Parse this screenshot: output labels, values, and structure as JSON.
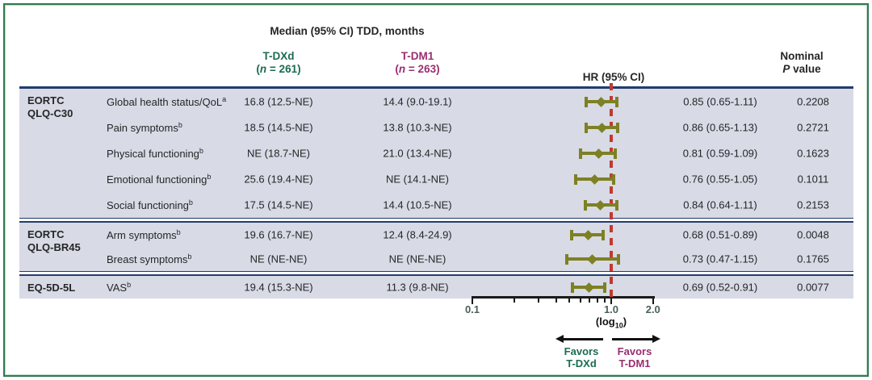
{
  "title": "Median (95% CI) TDD, months",
  "columns": {
    "tdxd": {
      "name": "T-DXd",
      "n_prefix": "(",
      "n_var": "n",
      "n_rest": " = 261)"
    },
    "tdm1": {
      "name": "T-DM1",
      "n_prefix": "(",
      "n_var": "n",
      "n_rest": " = 263)"
    },
    "hr_header": "HR (95% CI)",
    "p_header_line1": "Nominal",
    "p_header_italic": "P",
    "p_header_rest": " value"
  },
  "axis": {
    "scale": "log10",
    "min": 0.1,
    "max": 2.0,
    "ref_line": 1.0,
    "tick_labels": [
      "0.1",
      "1.0",
      "2.0"
    ],
    "minor_ticks": [
      0.1,
      0.2,
      0.3,
      0.4,
      0.5,
      0.6,
      0.7,
      0.8,
      0.9,
      1.0,
      2.0
    ],
    "log_note_pre": "(log",
    "log_note_sub": "10",
    "log_note_post": ")"
  },
  "favors": {
    "left": "Favors\nT-DXd",
    "right": "Favors\nT-DM1"
  },
  "colors": {
    "tdxd_green": "#1c6b52",
    "tdm1_magenta": "#9b2d70",
    "marker_olive": "#7d8123",
    "ref_line_red": "#c03a30",
    "row_background": "#d8dae6",
    "rule_navy": "#223c6d",
    "frame_green": "#2f7b50",
    "axis_label_green": "#4a6158"
  },
  "chart_data": {
    "type": "forest",
    "x_scale": "log10",
    "x_ref_line": 1.0,
    "x_range": [
      0.1,
      2.0
    ],
    "groups": [
      {
        "name_lines": "EORTC\nQLQ-C30",
        "rows": [
          {
            "measure": "Global health status/QoL",
            "sup": "a",
            "tdxd": "16.8 (12.5-NE)",
            "tdm1": "14.4 (9.0-19.1)",
            "hr": 0.85,
            "ci_low": 0.65,
            "ci_high": 1.11,
            "hr_text": "0.85 (0.65-1.11)",
            "p_value": "0.2208"
          },
          {
            "measure": "Pain symptoms",
            "sup": "b",
            "tdxd": "18.5 (14.5-NE)",
            "tdm1": "13.8 (10.3-NE)",
            "hr": 0.86,
            "ci_low": 0.65,
            "ci_high": 1.13,
            "hr_text": "0.86 (0.65-1.13)",
            "p_value": "0.2721"
          },
          {
            "measure": "Physical functioning",
            "sup": "b",
            "tdxd": "NE (18.7-NE)",
            "tdm1": "21.0 (13.4-NE)",
            "hr": 0.81,
            "ci_low": 0.59,
            "ci_high": 1.09,
            "hr_text": "0.81 (0.59-1.09)",
            "p_value": "0.1623"
          },
          {
            "measure": "Emotional functioning",
            "sup": "b",
            "tdxd": "25.6 (19.4-NE)",
            "tdm1": "NE (14.1-NE)",
            "hr": 0.76,
            "ci_low": 0.55,
            "ci_high": 1.05,
            "hr_text": "0.76 (0.55-1.05)",
            "p_value": "0.1011"
          },
          {
            "measure": "Social functioning",
            "sup": "b",
            "tdxd": "17.5 (14.5-NE)",
            "tdm1": "14.4 (10.5-NE)",
            "hr": 0.84,
            "ci_low": 0.64,
            "ci_high": 1.11,
            "hr_text": "0.84 (0.64-1.11)",
            "p_value": "0.2153"
          }
        ]
      },
      {
        "name_lines": "EORTC\nQLQ-BR45",
        "rows": [
          {
            "measure": "Arm symptoms",
            "sup": "b",
            "tdxd": "19.6 (16.7-NE)",
            "tdm1": "12.4 (8.4-24.9)",
            "hr": 0.68,
            "ci_low": 0.51,
            "ci_high": 0.89,
            "hr_text": "0.68 (0.51-0.89)",
            "p_value": "0.0048"
          },
          {
            "measure": "Breast symptoms",
            "sup": "b",
            "tdxd": "NE (NE-NE)",
            "tdm1": "NE (NE-NE)",
            "hr": 0.73,
            "ci_low": 0.47,
            "ci_high": 1.15,
            "hr_text": "0.73 (0.47-1.15)",
            "p_value": "0.1765"
          }
        ]
      },
      {
        "name_lines": "EQ-5D-5L",
        "rows": [
          {
            "measure": "VAS",
            "sup": "b",
            "tdxd": "19.4 (15.3-NE)",
            "tdm1": "11.3 (9.8-NE)",
            "hr": 0.69,
            "ci_low": 0.52,
            "ci_high": 0.91,
            "hr_text": "0.69 (0.52-0.91)",
            "p_value": "0.0077"
          }
        ]
      }
    ]
  }
}
